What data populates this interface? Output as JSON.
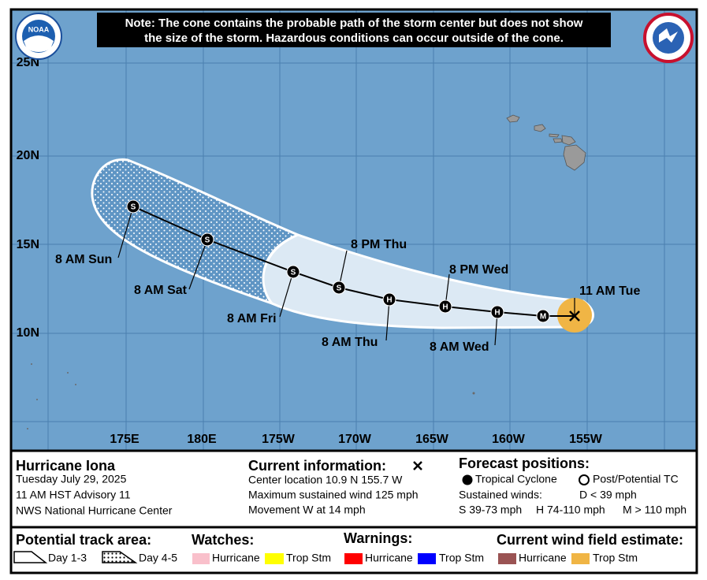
{
  "header": {
    "note_lines": [
      "Note: The cone contains the probable path of the storm center but does not show",
      "the size of the storm. Hazardous conditions can occur outside of the cone."
    ],
    "noaa": "NOAA"
  },
  "map": {
    "lat_labels": [
      "25N",
      "20N",
      "15N",
      "10N"
    ],
    "lon_labels": [
      "175E",
      "180E",
      "175W",
      "170W",
      "165W",
      "160W",
      "155W"
    ],
    "track_points": [
      "M",
      "H",
      "H",
      "H",
      "S",
      "S",
      "S",
      "S"
    ],
    "time_labels": [
      "11 AM Tue",
      "8 PM Wed",
      "8 AM Wed",
      "8 AM Thu",
      "8 PM Thu",
      "8 AM Fri",
      "8 AM Sat",
      "8 AM Sun"
    ]
  },
  "storm": {
    "name": "Hurricane Iona",
    "date": "Tuesday July 29, 2025",
    "advisory": "11 AM HST Advisory 11",
    "center": "NWS National Hurricane Center"
  },
  "current": {
    "title": "Current information:",
    "lines": [
      "Center location 10.9 N 155.7 W",
      "Maximum sustained wind 125 mph",
      "Movement W at 14 mph"
    ]
  },
  "forecast": {
    "title": "Forecast positions:",
    "tc": "Tropical Cyclone",
    "post": "Post/Potential TC",
    "sustained": "Sustained winds:",
    "d": "D < 39 mph",
    "s": "S 39-73 mph",
    "h": "H 74-110 mph",
    "m": "M > 110 mph"
  },
  "legend": {
    "track_title": "Potential track area:",
    "day13": "Day 1-3",
    "day45": "Day 4-5",
    "watches": "Watches:",
    "warnings": "Warnings:",
    "wind": "Current wind field estimate:",
    "watch_hurricane": "Hurricane",
    "watch_ts": "Trop Stm",
    "warn_hurricane": "Hurricane",
    "warn_ts": "Trop Stm",
    "wind_hurricane": "Hurricane",
    "wind_ts": "Trop Stm"
  }
}
